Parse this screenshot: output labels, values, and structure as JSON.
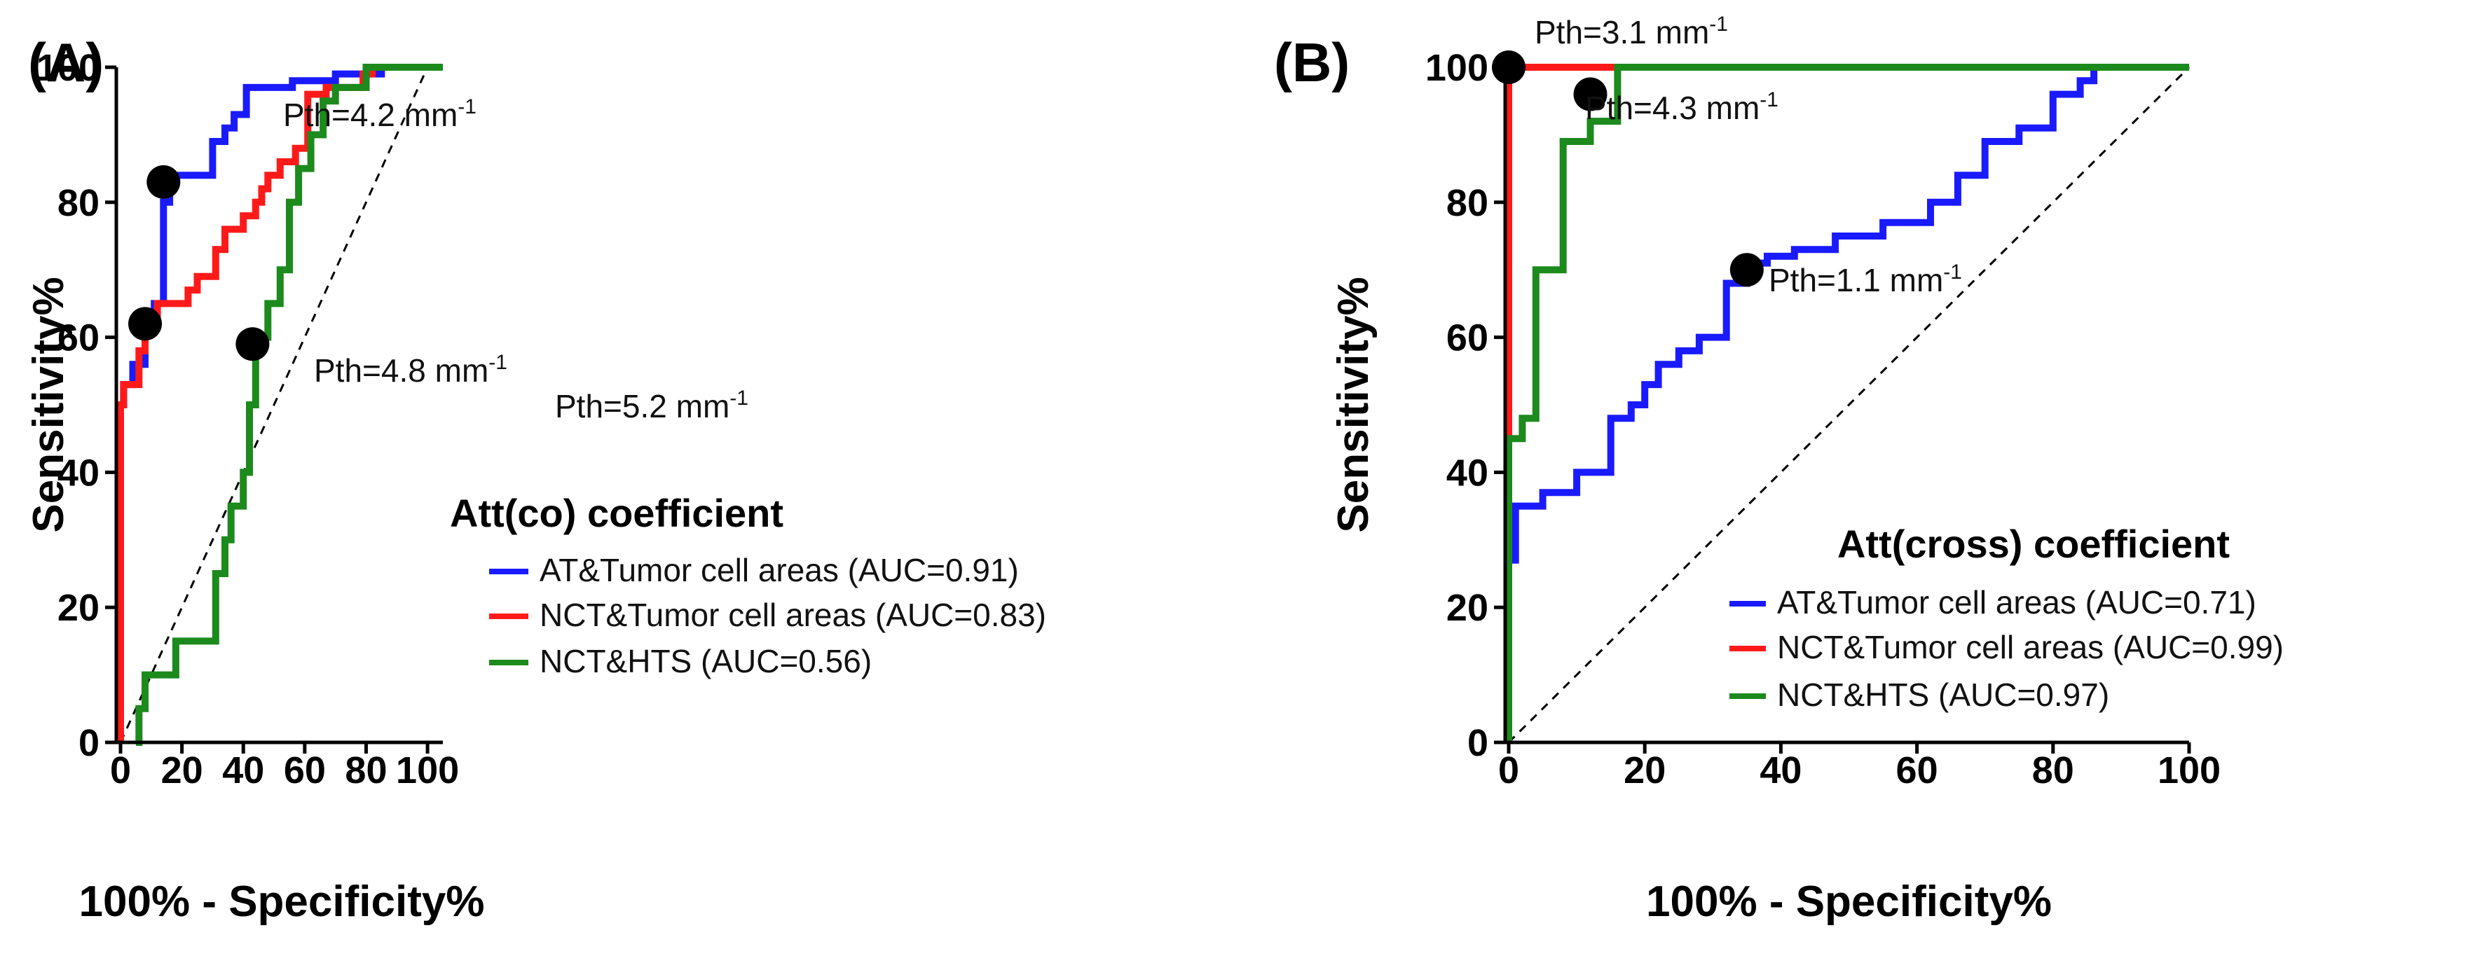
{
  "chart_data": [
    {
      "type": "line",
      "panel_label": "(A)",
      "xlabel": "100% - Specificity%",
      "ylabel": "Sensitivity%",
      "xlim": [
        0,
        105
      ],
      "ylim": [
        0,
        100
      ],
      "x_ticks": [
        0,
        20,
        40,
        60,
        80,
        100
      ],
      "y_ticks": [
        0,
        20,
        40,
        60,
        80,
        100
      ],
      "diagonal": true,
      "legend": {
        "title": "Att(co) coefficient",
        "entries": [
          "AT&Tumor cell areas (AUC=0.91)",
          "NCT&Tumor cell areas (AUC=0.83)",
          "NCT&HTS (AUC=0.56)"
        ]
      },
      "series": [
        {
          "name": "AT&Tumor cell areas",
          "color": "#1a1aff",
          "x": [
            0,
            0,
            1,
            1,
            4,
            4,
            8,
            8,
            11,
            11,
            14,
            14,
            16,
            16,
            30,
            30,
            34,
            34,
            37,
            37,
            41,
            41,
            56,
            56,
            70,
            70,
            85,
            85,
            105
          ],
          "y": [
            0,
            50,
            50,
            53,
            53,
            56,
            56,
            62,
            62,
            65,
            65,
            80,
            80,
            84,
            84,
            89,
            89,
            91,
            91,
            93,
            93,
            97,
            97,
            98,
            98,
            99,
            99,
            100,
            100
          ]
        },
        {
          "name": "NCT&Tumor cell areas",
          "color": "#ff1a1a",
          "x": [
            0,
            0,
            1,
            1,
            6,
            6,
            8,
            8,
            12,
            12,
            22,
            22,
            25,
            25,
            31,
            31,
            34,
            34,
            40,
            40,
            44,
            44,
            46,
            46,
            48,
            48,
            52,
            52,
            57,
            57,
            61,
            61,
            67,
            67,
            79,
            79,
            82,
            82,
            105
          ],
          "y": [
            0,
            50,
            50,
            53,
            53,
            58,
            58,
            62,
            62,
            65,
            65,
            67,
            67,
            69,
            69,
            73,
            73,
            76,
            76,
            78,
            78,
            80,
            80,
            82,
            82,
            84,
            84,
            86,
            86,
            88,
            88,
            96,
            96,
            97,
            97,
            99,
            99,
            100,
            100
          ]
        },
        {
          "name": "NCT&HTS",
          "color": "#1c8a1c",
          "x": [
            5,
            6,
            6,
            8,
            8,
            18,
            18,
            23,
            23,
            31,
            31,
            34,
            34,
            36,
            36,
            40,
            40,
            42,
            42,
            44,
            44,
            48,
            48,
            52,
            52,
            55,
            55,
            58,
            58,
            62,
            62,
            66,
            66,
            70,
            70,
            80,
            80,
            85,
            85,
            105
          ],
          "y": [
            0,
            0,
            5,
            5,
            10,
            10,
            15,
            15,
            15,
            15,
            25,
            25,
            30,
            30,
            35,
            35,
            40,
            40,
            50,
            50,
            60,
            60,
            65,
            65,
            70,
            70,
            80,
            80,
            85,
            85,
            90,
            90,
            95,
            95,
            97,
            97,
            100,
            100,
            100,
            100
          ]
        }
      ],
      "annotations": [
        {
          "x": 14,
          "y": 83,
          "label": "Pth=4.2 mm",
          "superscript": "-1"
        },
        {
          "x": 8,
          "y": 62,
          "label": "Pth=4.8 mm",
          "superscript": "-1"
        },
        {
          "x": 43,
          "y": 59,
          "label": "Pth=5.2 mm",
          "superscript": "-1"
        }
      ]
    },
    {
      "type": "line",
      "panel_label": "(B)",
      "xlabel": "100% - Specificity%",
      "ylabel": "Sensitivity%",
      "xlim": [
        0,
        100
      ],
      "ylim": [
        0,
        100
      ],
      "x_ticks": [
        0,
        20,
        40,
        60,
        80,
        100
      ],
      "y_ticks": [
        0,
        20,
        40,
        60,
        80,
        100
      ],
      "diagonal": true,
      "legend": {
        "title": "Att(cross) coefficient",
        "entries": [
          "AT&Tumor cell areas (AUC=0.71)",
          "NCT&Tumor cell areas (AUC=0.99)",
          "NCT&HTS (AUC=0.97)"
        ]
      },
      "series": [
        {
          "name": "AT&Tumor cell areas",
          "color": "#1a1aff",
          "x": [
            0,
            0,
            1,
            1,
            5,
            5,
            10,
            10,
            15,
            15,
            18,
            18,
            20,
            20,
            22,
            22,
            25,
            25,
            28,
            28,
            32,
            32,
            35,
            35,
            38,
            38,
            42,
            42,
            48,
            48,
            55,
            55,
            62,
            62,
            66,
            66,
            70,
            70,
            75,
            75,
            80,
            80,
            84,
            84,
            86,
            86,
            100
          ],
          "y": [
            0,
            27,
            27,
            35,
            35,
            37,
            37,
            40,
            40,
            48,
            48,
            50,
            50,
            53,
            53,
            56,
            56,
            58,
            58,
            60,
            60,
            68,
            68,
            71,
            71,
            72,
            72,
            73,
            73,
            75,
            75,
            77,
            77,
            80,
            80,
            84,
            84,
            89,
            89,
            91,
            91,
            96,
            96,
            98,
            98,
            100,
            100
          ]
        },
        {
          "name": "NCT&Tumor cell areas",
          "color": "#ff1a1a",
          "x": [
            0,
            0,
            100
          ],
          "y": [
            0,
            100,
            100
          ]
        },
        {
          "name": "NCT&HTS",
          "color": "#1c8a1c",
          "x": [
            0,
            0,
            2,
            2,
            4,
            4,
            8,
            8,
            12,
            12,
            16,
            16,
            100
          ],
          "y": [
            0,
            45,
            45,
            48,
            48,
            70,
            70,
            89,
            89,
            92,
            92,
            100,
            100
          ]
        }
      ],
      "annotations": [
        {
          "x": 0,
          "y": 100,
          "label": "Pth=3.1 mm",
          "superscript": "-1"
        },
        {
          "x": 12,
          "y": 96,
          "label": "Pth=4.3 mm",
          "superscript": "-1"
        },
        {
          "x": 35,
          "y": 70,
          "label": "Pth=1.1 mm",
          "superscript": "-1"
        }
      ]
    }
  ]
}
